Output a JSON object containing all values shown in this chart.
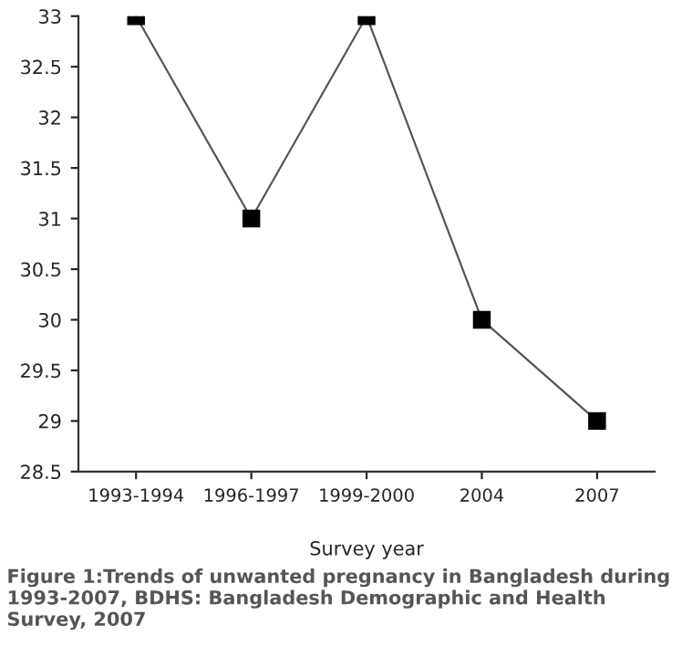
{
  "chart_data": {
    "type": "line",
    "xlabel": "Survey year",
    "categories": [
      "1993-1994",
      "1996-1997",
      "1999-2000",
      "2004",
      "2007"
    ],
    "series": [
      {
        "color": "#000000",
        "values": [
          33,
          31,
          33,
          30,
          29
        ]
      }
    ],
    "ylim": [
      28.5,
      33
    ],
    "yticks": [
      28.5,
      29,
      29.5,
      30,
      30.5,
      31,
      31.5,
      32,
      32.5,
      33
    ],
    "marker": "square",
    "line_style": "solid",
    "grid": false,
    "legend": false,
    "annotations": [
      "Figure 1:Trends of unwanted pregnancy in Bangladesh during 1993-2007, BDHS: Bangladesh Demographic and Health Survey, 2007"
    ]
  }
}
